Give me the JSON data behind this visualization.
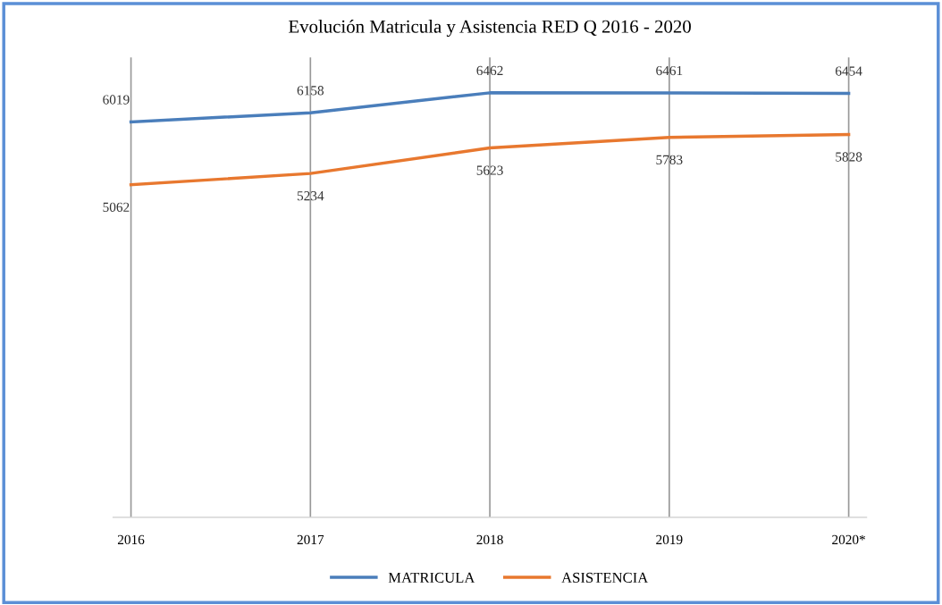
{
  "chart_data": {
    "type": "line",
    "title": "Evolución Matricula y Asistencia RED Q 2016 - 2020",
    "categories": [
      "2016",
      "2017",
      "2018",
      "2019",
      "2020*"
    ],
    "series": [
      {
        "name": "MATRICULA",
        "color": "#4a7ebb",
        "values": [
          6019,
          6158,
          6462,
          6461,
          6454
        ]
      },
      {
        "name": "ASISTENCIA",
        "color": "#e8782f",
        "values": [
          5062,
          5234,
          5623,
          5783,
          5828
        ]
      }
    ],
    "ylim": [
      0,
      7000
    ],
    "tick_labels": "x",
    "grid": "x",
    "legend": "bottom",
    "data_labels": true,
    "marker": "none",
    "line_style": "solid"
  }
}
